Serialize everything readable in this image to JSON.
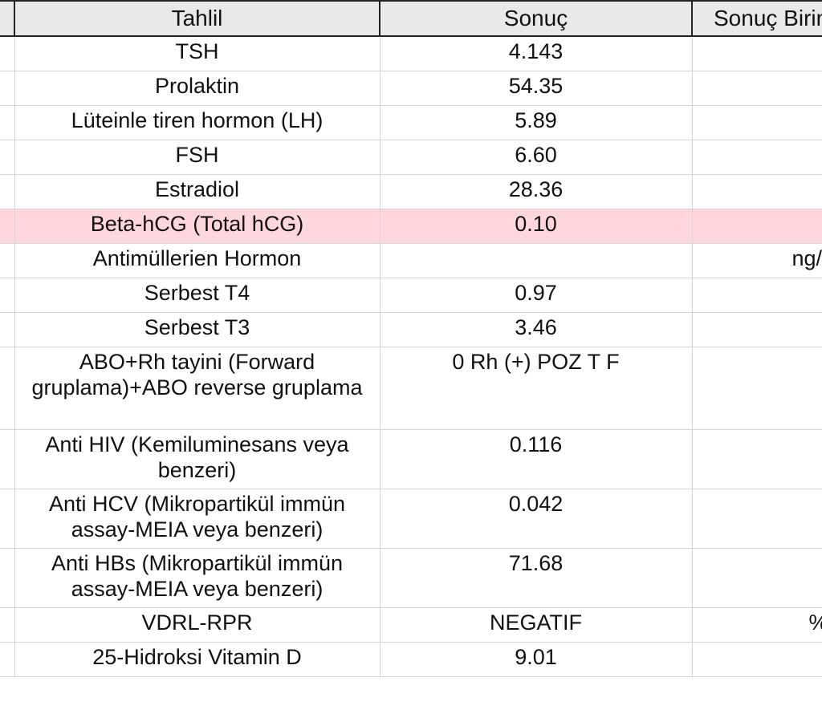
{
  "headers": {
    "test": "Tahlil",
    "result": "Sonuç",
    "unit": "Sonuç Birimi"
  },
  "rows": [
    {
      "test": "TSH",
      "result": "4.143",
      "unit": ""
    },
    {
      "test": "Prolaktin",
      "result": "54.35",
      "unit": ""
    },
    {
      "test": "Lüteinle  tiren hormon (LH)",
      "result": "5.89",
      "unit": ""
    },
    {
      "test": "FSH",
      "result": "6.60",
      "unit": ""
    },
    {
      "test": "Estradiol",
      "result": "28.36",
      "unit": ""
    },
    {
      "test": "Beta-hCG (Total hCG)",
      "result": "0.10",
      "unit": ""
    },
    {
      "test": "Antimüllerien Hormon",
      "result": "",
      "unit": "ng/ml"
    },
    {
      "test": "Serbest T4",
      "result": "0.97",
      "unit": ""
    },
    {
      "test": "Serbest T3",
      "result": "3.46",
      "unit": ""
    },
    {
      "test": "ABO+Rh tayini   (Forward gruplama)+ABO reverse gruplama",
      "result": "0 Rh (+) POZ T F",
      "unit": ""
    },
    {
      "test": "Anti HIV (Kemiluminesans veya benzeri)",
      "result": "0.116",
      "unit": ""
    },
    {
      "test": "Anti HCV (Mikropartikül immün assay-MEIA veya benzeri)",
      "result": "0.042",
      "unit": ""
    },
    {
      "test": "Anti HBs  (Mikropartikül immün assay-MEIA veya benzeri)",
      "result": "71.68",
      "unit": ""
    },
    {
      "test": "VDRL-RPR",
      "result": "NEGATIF",
      "unit": "%"
    },
    {
      "test": "25-Hidroksi Vitamin D",
      "result": "9.01",
      "unit": ""
    }
  ],
  "colors": {
    "highlight_row": "#ffd6dc",
    "header_bg": "#e9e9e9",
    "grid_line": "#d4d4d4"
  }
}
